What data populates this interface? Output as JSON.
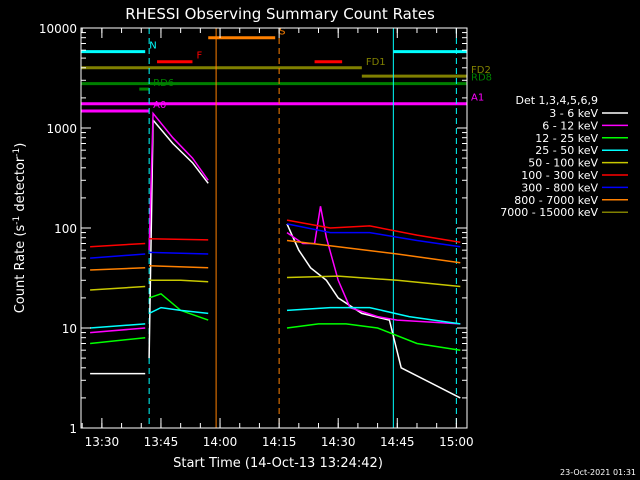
{
  "chart_data": {
    "type": "line",
    "title": "RHESSI Observing Summary Count Rates",
    "xlabel": "Start Time (14-Oct-13 13:24:42)",
    "ylabel_main": "Count Rate (s",
    "ylabel_sup1": "-1",
    "ylabel_mid": " detector",
    "ylabel_sup2": "-1",
    "ylabel_end": ")",
    "footer": "23-Oct-2021 01:31",
    "x_scale": "time-minutes",
    "xlim": [
      "13:24:42",
      "15:02:42"
    ],
    "y_scale": "log",
    "ylim": [
      1,
      10000
    ],
    "x_ticks": [
      "13:30",
      "13:45",
      "14:00",
      "14:15",
      "14:30",
      "14:45",
      "15:00"
    ],
    "y_ticks": [
      "1",
      "10",
      "100",
      "1000",
      "10000"
    ],
    "legend": {
      "placement": "right",
      "title": "Det 1,3,4,5,6,9",
      "entries": [
        {
          "label": "3 - 6 keV",
          "color": "#ffffff"
        },
        {
          "label": "6 - 12 keV",
          "color": "#ff00ff"
        },
        {
          "label": "12 - 25 keV",
          "color": "#00ff00"
        },
        {
          "label": "25 - 50 keV",
          "color": "#00ffff"
        },
        {
          "label": "50 - 100 keV",
          "color": "#c8c800"
        },
        {
          "label": "100 - 300 keV",
          "color": "#ff0000"
        },
        {
          "label": "300 - 800 keV",
          "color": "#0000ff"
        },
        {
          "label": "800 - 7000 keV",
          "color": "#ff8000"
        },
        {
          "label": "7000 - 15000 keV",
          "color": "#808000"
        }
      ]
    },
    "flag_bars": [
      {
        "label": "N",
        "color": "#00ffff",
        "y": 5800,
        "segments": [
          [
            "13:24:42",
            "13:41:00"
          ],
          [
            "14:44:00",
            "15:02:42"
          ]
        ]
      },
      {
        "label": "S",
        "color": "#ff8000",
        "y": 8000,
        "segments": [
          [
            "13:57:00",
            "14:14:00"
          ]
        ]
      },
      {
        "label": "F",
        "color": "#ff0000",
        "y": 4600,
        "segments": [
          [
            "13:44:00",
            "13:53:00"
          ],
          [
            "14:24:00",
            "14:31:00"
          ]
        ]
      },
      {
        "label": "FD1",
        "color": "#808000",
        "y": 4000,
        "segments": [
          [
            "13:24:42",
            "14:36:00"
          ]
        ]
      },
      {
        "label": "FD2",
        "color": "#808000",
        "y": 3300,
        "segments": [
          [
            "14:36:00",
            "15:02:42"
          ]
        ]
      },
      {
        "label": "RD6",
        "color": "#008000",
        "y": 2450,
        "segments": [
          [
            "13:39:30",
            "13:42:00"
          ]
        ]
      },
      {
        "label": "RD8",
        "color": "#008000",
        "y": 2780,
        "segments": [
          [
            "13:24:42",
            "15:02:42"
          ]
        ]
      },
      {
        "label": "A0",
        "color": "#ff00ff",
        "y": 1480,
        "segments": [
          [
            "13:24:42",
            "13:42:00"
          ]
        ]
      },
      {
        "label": "A1",
        "color": "#ff00ff",
        "y": 1750,
        "segments": [
          [
            "13:24:42",
            "15:02:42"
          ]
        ]
      }
    ],
    "vertical_markers": [
      {
        "time": "13:24:42",
        "color": "#00ffff",
        "style": "solid"
      },
      {
        "time": "13:42:00",
        "color": "#00ffff",
        "style": "dashed"
      },
      {
        "time": "13:59:00",
        "color": "#ff8000",
        "style": "solid"
      },
      {
        "time": "14:15:00",
        "color": "#ff8000",
        "style": "dashed"
      },
      {
        "time": "14:44:00",
        "color": "#00ffff",
        "style": "solid"
      },
      {
        "time": "15:00:00",
        "color": "#00ffff",
        "style": "dashed"
      }
    ],
    "series": [
      {
        "name": "3 - 6 keV",
        "color": "#ffffff",
        "segments": [
          [
            [
              "13:27:00",
              3.5
            ],
            [
              "13:41:00",
              3.5
            ]
          ],
          [
            [
              "13:42:00",
              5
            ],
            [
              "13:43:00",
              1200
            ],
            [
              "13:48:00",
              700
            ],
            [
              "13:53:00",
              450
            ],
            [
              "13:57:00",
              280
            ]
          ],
          [
            [
              "14:17:00",
              110
            ],
            [
              "14:20:00",
              60
            ],
            [
              "14:23:00",
              40
            ],
            [
              "14:27:00",
              30
            ],
            [
              "14:30:00",
              20
            ],
            [
              "14:36:00",
              14
            ],
            [
              "14:43:00",
              12
            ],
            [
              "14:46:00",
              4
            ],
            [
              "15:01:00",
              2
            ]
          ]
        ]
      },
      {
        "name": "6 - 12 keV",
        "color": "#ff00ff",
        "segments": [
          [
            [
              "13:27:00",
              9
            ],
            [
              "13:41:00",
              10
            ]
          ],
          [
            [
              "13:42:00",
              60
            ],
            [
              "13:43:00",
              1400
            ],
            [
              "13:48:00",
              800
            ],
            [
              "13:53:00",
              500
            ],
            [
              "13:57:00",
              300
            ]
          ],
          [
            [
              "14:17:00",
              90
            ],
            [
              "14:21:00",
              70
            ],
            [
              "14:24:00",
              70
            ],
            [
              "14:25:30",
              165
            ],
            [
              "14:27:00",
              80
            ],
            [
              "14:30:00",
              30
            ],
            [
              "14:33:00",
              16
            ],
            [
              "14:40:00",
              13
            ],
            [
              "14:45:00",
              12
            ],
            [
              "15:01:00",
              11
            ]
          ]
        ]
      },
      {
        "name": "12 - 25 keV",
        "color": "#00ff00",
        "segments": [
          [
            [
              "13:27:00",
              7
            ],
            [
              "13:41:00",
              8
            ]
          ],
          [
            [
              "13:42:00",
              20
            ],
            [
              "13:45:00",
              22
            ],
            [
              "13:50:00",
              15
            ],
            [
              "13:57:00",
              12
            ]
          ],
          [
            [
              "14:17:00",
              10
            ],
            [
              "14:25:00",
              11
            ],
            [
              "14:32:00",
              11
            ],
            [
              "14:40:00",
              10
            ],
            [
              "14:50:00",
              7
            ],
            [
              "15:01:00",
              6
            ]
          ]
        ]
      },
      {
        "name": "25 - 50 keV",
        "color": "#00ffff",
        "segments": [
          [
            [
              "13:27:00",
              10
            ],
            [
              "13:41:00",
              11
            ]
          ],
          [
            [
              "13:42:00",
              14
            ],
            [
              "13:45:00",
              16
            ],
            [
              "13:50:00",
              15
            ],
            [
              "13:57:00",
              14
            ]
          ],
          [
            [
              "14:17:00",
              15
            ],
            [
              "14:28:00",
              16
            ],
            [
              "14:38:00",
              16
            ],
            [
              "14:48:00",
              13
            ],
            [
              "15:01:00",
              11
            ]
          ]
        ]
      },
      {
        "name": "50 - 100 keV",
        "color": "#c8c800",
        "segments": [
          [
            [
              "13:27:00",
              24
            ],
            [
              "13:41:00",
              26
            ]
          ],
          [
            [
              "13:42:00",
              30
            ],
            [
              "13:50:00",
              30
            ],
            [
              "13:57:00",
              29
            ]
          ],
          [
            [
              "14:17:00",
              32
            ],
            [
              "14:30:00",
              33
            ],
            [
              "14:45:00",
              30
            ],
            [
              "15:01:00",
              26
            ]
          ]
        ]
      },
      {
        "name": "100 - 300 keV",
        "color": "#ff0000",
        "segments": [
          [
            [
              "13:27:00",
              65
            ],
            [
              "13:41:00",
              70
            ]
          ],
          [
            [
              "13:42:00",
              78
            ],
            [
              "13:57:00",
              76
            ]
          ],
          [
            [
              "14:17:00",
              120
            ],
            [
              "14:28:00",
              100
            ],
            [
              "14:38:00",
              105
            ],
            [
              "14:50:00",
              85
            ],
            [
              "15:01:00",
              72
            ]
          ]
        ]
      },
      {
        "name": "300 - 800 keV",
        "color": "#0000ff",
        "segments": [
          [
            [
              "13:27:00",
              50
            ],
            [
              "13:41:00",
              55
            ]
          ],
          [
            [
              "13:42:00",
              57
            ],
            [
              "13:57:00",
              55
            ]
          ],
          [
            [
              "14:17:00",
              110
            ],
            [
              "14:28:00",
              90
            ],
            [
              "14:38:00",
              90
            ],
            [
              "14:50:00",
              75
            ],
            [
              "15:01:00",
              65
            ]
          ]
        ]
      },
      {
        "name": "800 - 7000 keV",
        "color": "#ff8000",
        "segments": [
          [
            [
              "13:27:00",
              38
            ],
            [
              "13:41:00",
              40
            ]
          ],
          [
            [
              "13:42:00",
              42
            ],
            [
              "13:57:00",
              40
            ]
          ],
          [
            [
              "14:17:00",
              75
            ],
            [
              "14:30:00",
              65
            ],
            [
              "14:45:00",
              55
            ],
            [
              "15:01:00",
              45
            ]
          ]
        ]
      }
    ]
  }
}
